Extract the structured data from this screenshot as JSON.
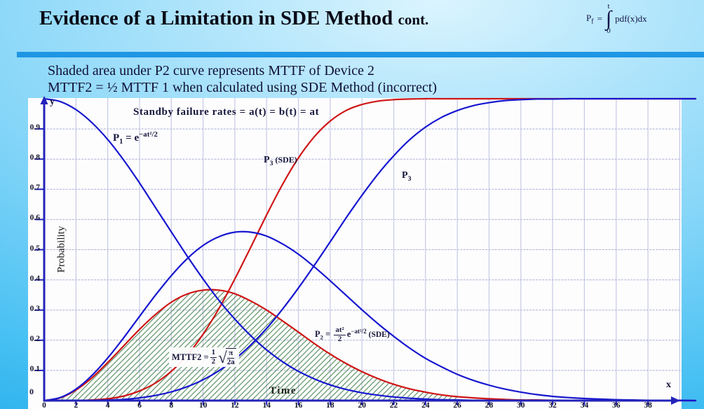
{
  "slide": {
    "title": "Evidence of a Limitation in SDE Method",
    "title_suffix": "cont.",
    "subtitle_line1": "Shaded area under P2 curve represents MTTF of Device 2",
    "subtitle_line2": "MTTF2 = ½ MTTF 1 when calculated using SDE Method (incorrect)",
    "accent_bar_color": "#1f96e4"
  },
  "pf_formula": {
    "lhs": "P",
    "lhs_sub": "f",
    "eq": "=",
    "upper": "t",
    "integral": "∫",
    "lower": "0",
    "body": "pdf(x)dx"
  },
  "chart_data": {
    "type": "line",
    "title": "Standby failure rates = a(t) = b(t) = at",
    "xlabel": "Time",
    "ylabel": "Probability",
    "x_axis_letter": "x",
    "y_axis_letter": "y",
    "origin_label": "0",
    "xlim": [
      0,
      41
    ],
    "ylim": [
      0,
      1.03
    ],
    "x_ticks": [
      0,
      2,
      4,
      6,
      8,
      10,
      12,
      14,
      16,
      18,
      20,
      22,
      24,
      26,
      28,
      30,
      32,
      34,
      36,
      38
    ],
    "y_ticks": [
      0.1,
      0.2,
      0.3,
      0.4,
      0.5,
      0.6,
      0.7,
      0.8,
      0.9
    ],
    "grid": {
      "vertical_step": 2,
      "horizontal_step": 0.1,
      "v_color": "#c6c9e6",
      "h_color": "#979dca"
    },
    "axis_color": "#2323ba",
    "x": [
      0,
      1,
      2,
      3,
      4,
      5,
      6,
      7,
      8,
      9,
      10,
      11,
      12,
      13,
      14,
      15,
      16,
      17,
      18,
      19,
      20,
      21,
      22,
      23,
      24,
      25,
      26,
      27,
      28,
      29,
      30,
      31,
      32,
      33,
      34,
      35,
      36,
      37,
      38,
      39,
      40,
      41
    ],
    "series": [
      {
        "name": "P1",
        "label": "P1 = e^(-at2/2)",
        "color": "#1717cf",
        "values": [
          1,
          0.991,
          0.964,
          0.921,
          0.865,
          0.797,
          0.721,
          0.64,
          0.559,
          0.479,
          0.403,
          0.332,
          0.27,
          0.215,
          0.168,
          0.129,
          0.097,
          0.072,
          0.052,
          0.037,
          0.026,
          0.018,
          0.012,
          0.008,
          0.005,
          0.003,
          0.002,
          0.001,
          0.001,
          0,
          0,
          0,
          0,
          0,
          0,
          0,
          0,
          0,
          0,
          0,
          0,
          0
        ]
      },
      {
        "name": "P2_SDE",
        "label": "P2 = (at2/2)e^(-at2/2) (SDE)",
        "color": "#cf1616",
        "shaded": true,
        "values": [
          0,
          0.009,
          0.035,
          0.075,
          0.126,
          0.181,
          0.236,
          0.285,
          0.326,
          0.353,
          0.366,
          0.366,
          0.354,
          0.33,
          0.3,
          0.264,
          0.227,
          0.189,
          0.154,
          0.123,
          0.096,
          0.073,
          0.054,
          0.039,
          0.028,
          0.019,
          0.013,
          0.009,
          0.006,
          0.004,
          0.002,
          0.002,
          0.001,
          0.001,
          0,
          0,
          0,
          0,
          0,
          0,
          0,
          0
        ]
      },
      {
        "name": "P3_SDE",
        "label": "P3 (SDE)",
        "color": "#cf1616",
        "values": [
          0,
          0,
          0,
          0.002,
          0.006,
          0.015,
          0.032,
          0.058,
          0.097,
          0.15,
          0.22,
          0.305,
          0.403,
          0.508,
          0.615,
          0.716,
          0.804,
          0.874,
          0.926,
          0.961,
          0.981,
          0.992,
          0.997,
          0.999,
          1,
          1,
          1,
          1,
          1,
          1,
          1,
          1,
          1,
          1,
          1,
          1,
          1,
          1,
          1,
          1,
          1,
          1
        ]
      },
      {
        "name": "P2",
        "label": "P2 (correct curve, unlabeled)",
        "color": "#1717cf",
        "values": [
          0,
          0.01,
          0.038,
          0.083,
          0.141,
          0.208,
          0.279,
          0.349,
          0.414,
          0.47,
          0.514,
          0.543,
          0.558,
          0.558,
          0.545,
          0.519,
          0.485,
          0.443,
          0.397,
          0.349,
          0.301,
          0.255,
          0.213,
          0.174,
          0.14,
          0.112,
          0.087,
          0.067,
          0.051,
          0.038,
          0.028,
          0.02,
          0.014,
          0.01,
          0.007,
          0.005,
          0.003,
          0.002,
          0.001,
          0.001,
          0.001,
          0
        ]
      },
      {
        "name": "P3",
        "label": "P3",
        "color": "#1717cf",
        "values": [
          0,
          0,
          0,
          0.001,
          0.002,
          0.004,
          0.009,
          0.017,
          0.029,
          0.046,
          0.069,
          0.099,
          0.137,
          0.184,
          0.239,
          0.303,
          0.373,
          0.448,
          0.526,
          0.605,
          0.68,
          0.75,
          0.811,
          0.864,
          0.906,
          0.938,
          0.961,
          0.977,
          0.987,
          0.994,
          0.997,
          0.999,
          0.999,
          1,
          1,
          1,
          1,
          1,
          1,
          1,
          1,
          1
        ]
      }
    ],
    "shaded_region": {
      "under": "P2_SDE",
      "x_range": [
        0,
        26
      ],
      "hatch_color": "#3f7d46"
    },
    "labels": {
      "standby": "Standby failure rates = a(t) = b(t) = at",
      "p1": {
        "base": "P",
        "sub": "1",
        "mid": " = e",
        "exp": "−at²/2"
      },
      "p3sde": {
        "base": "P",
        "sub": "3",
        "tail": " (SDE)"
      },
      "p3": {
        "base": "P",
        "sub": "3"
      },
      "p2": {
        "base": "P",
        "sub": "2",
        "eq": " = ",
        "num": "at²",
        "den": "2",
        "e": "e",
        "exp": "−at²/2",
        "tail": " (SDE)"
      },
      "mttf": {
        "head": "MTTF2 = ",
        "num1": "1",
        "den1": "2",
        "rad": "√",
        "num2": "π",
        "den2": "2a"
      }
    }
  }
}
